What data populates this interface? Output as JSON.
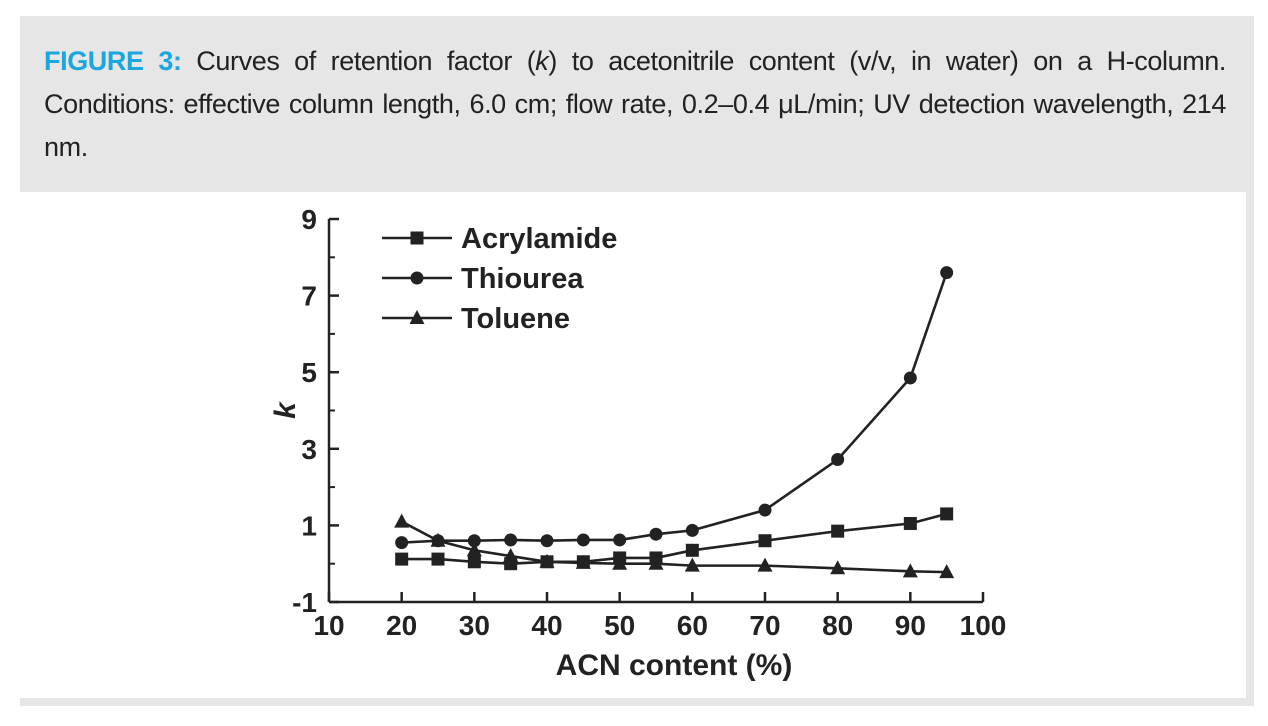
{
  "caption": {
    "label": "FIGURE 3:",
    "text": "Curves of retention factor (k) to acetonitrile content (v/v, in water) on a H-column. Conditions: effective column length, 6.0 cm; flow rate, 0.2–0.4 μL/min; UV detection wavelength, 214 nm.",
    "text_before_k": " Curves of retention factor (",
    "k_symbol": "k",
    "text_after_k": ") to acetonitrile content (v/v, in water) on a H-column. Conditions: effective column length, 6.0 cm; flow rate, 0.2–0.4 μL/min; UV detection wavelength, 214 nm."
  },
  "colors": {
    "caption_label": "#1ba7dd",
    "frame_background": "#e6e6e6",
    "chart_ink": "#222222"
  },
  "chart_data": {
    "type": "line",
    "title": "",
    "xlabel": "ACN content (%)",
    "ylabel": "k",
    "xlim": [
      10,
      100
    ],
    "ylim": [
      -1,
      9
    ],
    "xticks": [
      10,
      20,
      30,
      40,
      50,
      60,
      70,
      80,
      90,
      100
    ],
    "yticks": [
      -1,
      1,
      3,
      5,
      7,
      9
    ],
    "grid": false,
    "legend_position": "top-left",
    "series": [
      {
        "name": "Acrylamide",
        "marker": "square",
        "x": [
          20,
          25,
          30,
          35,
          40,
          45,
          50,
          55,
          60,
          70,
          80,
          90,
          95
        ],
        "y": [
          0.12,
          0.12,
          0.05,
          0.0,
          0.05,
          0.05,
          0.15,
          0.15,
          0.35,
          0.6,
          0.85,
          1.05,
          1.3
        ]
      },
      {
        "name": "Thiourea",
        "marker": "circle",
        "x": [
          20,
          25,
          30,
          35,
          40,
          45,
          50,
          55,
          60,
          70,
          80,
          90,
          95
        ],
        "y": [
          0.55,
          0.6,
          0.6,
          0.62,
          0.6,
          0.62,
          0.62,
          0.77,
          0.87,
          1.4,
          2.72,
          4.85,
          7.6
        ]
      },
      {
        "name": "Toluene",
        "marker": "triangle",
        "x": [
          20,
          25,
          30,
          35,
          40,
          45,
          50,
          55,
          60,
          70,
          80,
          90,
          95
        ],
        "y": [
          1.1,
          0.6,
          0.35,
          0.2,
          0.05,
          0.02,
          0.0,
          0.0,
          -0.05,
          -0.05,
          -0.12,
          -0.2,
          -0.22
        ]
      }
    ]
  }
}
